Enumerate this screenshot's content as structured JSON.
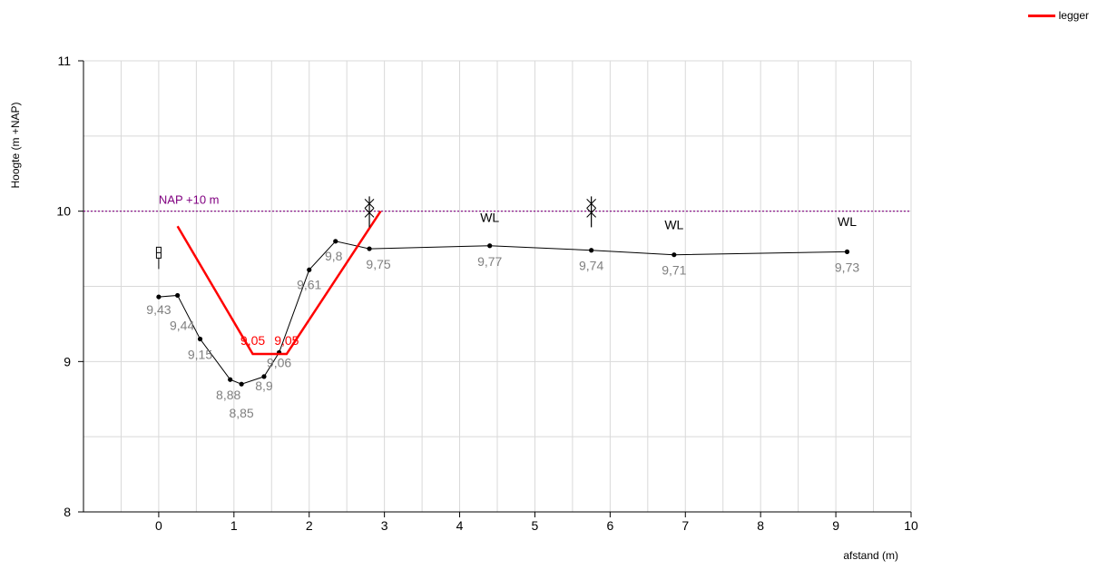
{
  "chart_data": {
    "type": "line",
    "xlabel": "afstand (m)",
    "ylabel": "Hoogte (m +NAP)",
    "xlim": [
      -1,
      10
    ],
    "ylim": [
      8,
      11
    ],
    "x_ticks": [
      0,
      1,
      2,
      3,
      4,
      5,
      6,
      7,
      8,
      9,
      10
    ],
    "y_ticks": [
      8,
      9,
      10,
      11
    ],
    "grid": true,
    "legend_position": "top-right",
    "colors": {
      "profile": "#000000",
      "legger": "#ff0000",
      "reference": "#800080",
      "point_label": "#808080",
      "grid": "#d9d9d9"
    },
    "reference_line": {
      "y": 10,
      "label": "NAP +10 m"
    },
    "series": [
      {
        "key": "profile",
        "points": [
          {
            "x": 0.0,
            "y": 9.43,
            "label": "9,43"
          },
          {
            "x": 0.25,
            "y": 9.44,
            "label": "9,44"
          },
          {
            "x": 0.55,
            "y": 9.15,
            "label": "9,15"
          },
          {
            "x": 0.95,
            "y": 8.88,
            "label": "8,88"
          },
          {
            "x": 1.1,
            "y": 8.85,
            "label": "8,85"
          },
          {
            "x": 1.4,
            "y": 8.9,
            "label": "8,9"
          },
          {
            "x": 1.6,
            "y": 9.06,
            "label": "9,06"
          },
          {
            "x": 2.0,
            "y": 9.61,
            "label": "9,61"
          },
          {
            "x": 2.35,
            "y": 9.8,
            "label": "9,8"
          },
          {
            "x": 2.8,
            "y": 9.75,
            "label": "9,75"
          },
          {
            "x": 4.4,
            "y": 9.77,
            "label": "9,77"
          },
          {
            "x": 5.75,
            "y": 9.74,
            "label": "9,74"
          },
          {
            "x": 6.85,
            "y": 9.71,
            "label": "9,71"
          },
          {
            "x": 9.15,
            "y": 9.73,
            "label": "9,73"
          }
        ]
      },
      {
        "key": "legger",
        "name": "legger",
        "points": [
          {
            "x": 0.25,
            "y": 9.9
          },
          {
            "x": 1.25,
            "y": 9.05,
            "label": "9,05"
          },
          {
            "x": 1.7,
            "y": 9.05,
            "label": "9,05"
          },
          {
            "x": 2.95,
            "y": 10.0
          }
        ]
      }
    ],
    "markers": [
      {
        "type": "post",
        "x": 0.0,
        "y": 9.7
      },
      {
        "type": "star",
        "x": 2.8,
        "y": 10.05
      },
      {
        "type": "star",
        "x": 5.75,
        "y": 10.05
      },
      {
        "type": "text",
        "x": 4.4,
        "y": 9.93,
        "text": "WL"
      },
      {
        "type": "text",
        "x": 6.85,
        "y": 9.88,
        "text": "WL"
      },
      {
        "type": "text",
        "x": 9.15,
        "y": 9.9,
        "text": "WL"
      }
    ]
  }
}
